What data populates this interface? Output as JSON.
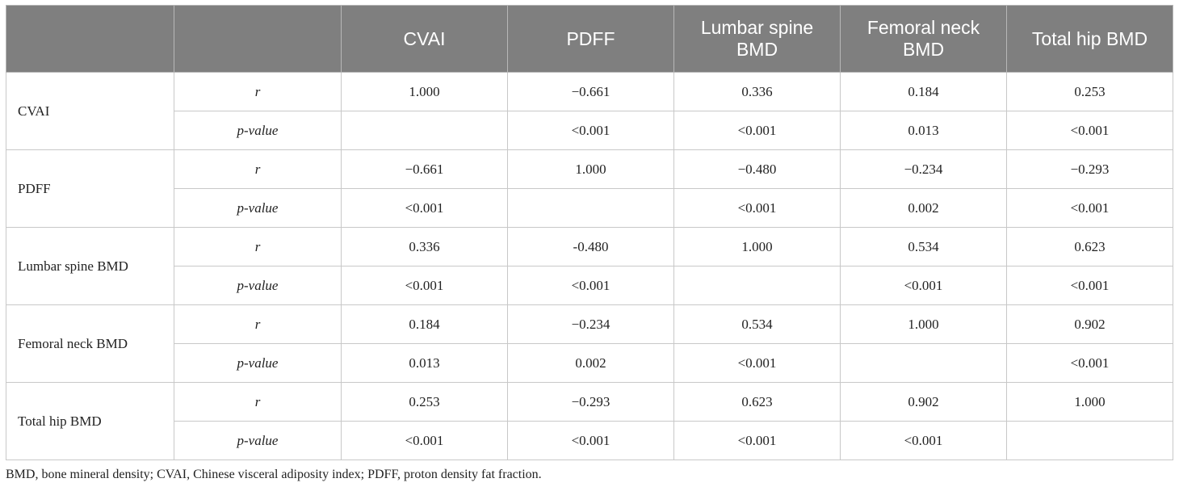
{
  "table": {
    "header": [
      "",
      "",
      "CVAI",
      "PDFF",
      "Lumbar spine BMD",
      "Femoral neck BMD",
      "Total hip BMD"
    ],
    "groups": [
      {
        "label": "CVAI",
        "rows": [
          {
            "stat": "r",
            "values": [
              "1.000",
              "−0.661",
              "0.336",
              "0.184",
              "0.253"
            ]
          },
          {
            "stat": "p-value",
            "values": [
              "",
              "<0.001",
              "<0.001",
              "0.013",
              "<0.001"
            ]
          }
        ]
      },
      {
        "label": "PDFF",
        "rows": [
          {
            "stat": "r",
            "values": [
              "−0.661",
              "1.000",
              "−0.480",
              "−0.234",
              "−0.293"
            ]
          },
          {
            "stat": "p-value",
            "values": [
              "<0.001",
              "",
              "<0.001",
              "0.002",
              "<0.001"
            ]
          }
        ]
      },
      {
        "label": "Lumbar spine BMD",
        "rows": [
          {
            "stat": "r",
            "values": [
              "0.336",
              "-0.480",
              "1.000",
              "0.534",
              "0.623"
            ]
          },
          {
            "stat": "p-value",
            "values": [
              "<0.001",
              "<0.001",
              "",
              "<0.001",
              "<0.001"
            ]
          }
        ]
      },
      {
        "label": "Femoral neck BMD",
        "rows": [
          {
            "stat": "r",
            "values": [
              "0.184",
              "−0.234",
              "0.534",
              "1.000",
              "0.902"
            ]
          },
          {
            "stat": "p-value",
            "values": [
              "0.013",
              "0.002",
              "<0.001",
              "",
              "<0.001"
            ]
          }
        ]
      },
      {
        "label": "Total hip BMD",
        "rows": [
          {
            "stat": "r",
            "values": [
              "0.253",
              "−0.293",
              "0.623",
              "0.902",
              "1.000"
            ]
          },
          {
            "stat": "p-value",
            "values": [
              "<0.001",
              "<0.001",
              "<0.001",
              "<0.001",
              ""
            ]
          }
        ]
      }
    ]
  },
  "footnote": "BMD, bone mineral density; CVAI, Chinese visceral adiposity index; PDFF, proton density fat fraction.",
  "colors": {
    "header_bg": "#7f7f7f",
    "header_text": "#ffffff",
    "grid": "#c8c8c8"
  }
}
